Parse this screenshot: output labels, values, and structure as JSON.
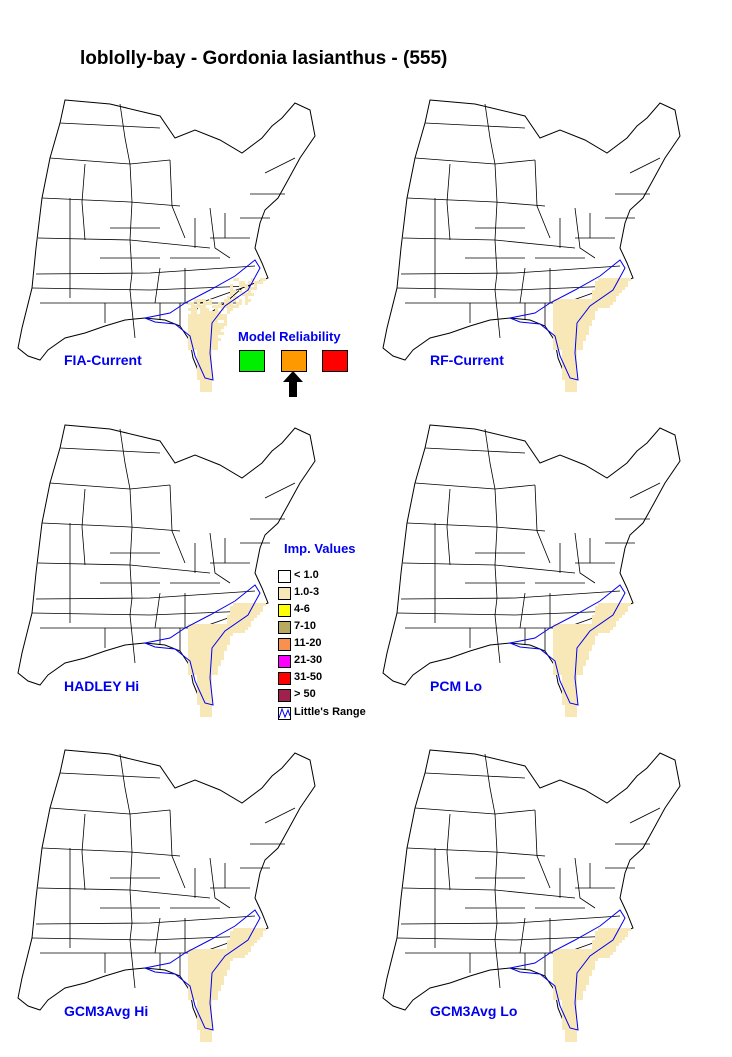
{
  "title": "loblolly-bay - Gordonia lasianthus - (555)",
  "maps": [
    {
      "label": "FIA-Current",
      "intensity": "low"
    },
    {
      "label": "RF-Current",
      "intensity": "medium"
    },
    {
      "label": "HADLEY Hi",
      "intensity": "medium"
    },
    {
      "label": "PCM Lo",
      "intensity": "medium"
    },
    {
      "label": "GCM3Avg Hi",
      "intensity": "medium"
    },
    {
      "label": "GCM3Avg Lo",
      "intensity": "medium"
    }
  ],
  "model_reliability": {
    "title": "Model Reliability",
    "levels": [
      {
        "color": "#00ee00",
        "name": "high"
      },
      {
        "color": "#ff9900",
        "name": "medium"
      },
      {
        "color": "#ff0000",
        "name": "low"
      }
    ],
    "selected": "medium"
  },
  "legend": {
    "title": "Imp. Values",
    "items": [
      {
        "label": "< 1.0",
        "color": "#ffffff"
      },
      {
        "label": "1.0-3",
        "color": "#f8e8b8"
      },
      {
        "label": "4-6",
        "color": "#ffff00"
      },
      {
        "label": "7-10",
        "color": "#b8a860"
      },
      {
        "label": "11-20",
        "color": "#f89050"
      },
      {
        "label": "21-30",
        "color": "#ff00ff"
      },
      {
        "label": "31-50",
        "color": "#ff0000"
      },
      {
        "label": "> 50",
        "color": "#a02050"
      }
    ],
    "range_label": "Little's Range",
    "range_color": "#0000ee"
  }
}
